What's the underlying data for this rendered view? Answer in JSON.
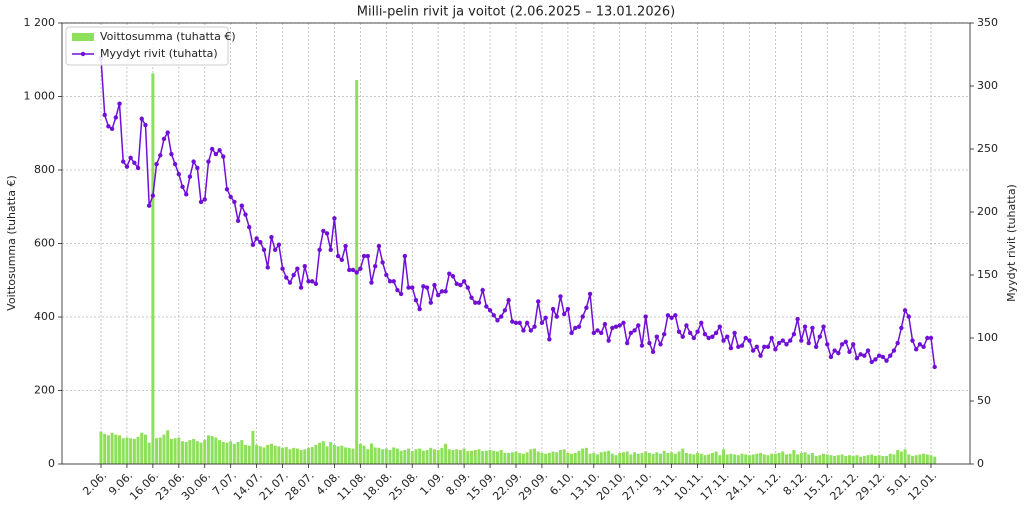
{
  "chart_data": {
    "type": "bar",
    "title": "Milli-pelin rivit ja voitot (2.06.2025 – 13.01.2026)",
    "ylabel": "Voittosumma (tuhatta €)",
    "y2label": "Myydyt rivit (tuhatta)",
    "grid": true,
    "legend": "upper left",
    "categories": [
      "2.06.",
      null,
      null,
      null,
      null,
      null,
      null,
      "9.06.",
      null,
      null,
      null,
      null,
      null,
      null,
      "16.06.",
      null,
      null,
      null,
      null,
      null,
      null,
      "23.06.",
      null,
      null,
      null,
      null,
      null,
      null,
      "30.06.",
      null,
      null,
      null,
      null,
      null,
      null,
      "7.07.",
      null,
      null,
      null,
      null,
      null,
      null,
      "14.07.",
      null,
      null,
      null,
      null,
      null,
      null,
      "21.07.",
      null,
      null,
      null,
      null,
      null,
      null,
      "28.07.",
      null,
      null,
      null,
      null,
      null,
      null,
      "4.08.",
      null,
      null,
      null,
      null,
      null,
      null,
      "11.08.",
      null,
      null,
      null,
      null,
      null,
      null,
      "18.08.",
      null,
      null,
      null,
      null,
      null,
      null,
      "25.08.",
      null,
      null,
      null,
      null,
      null,
      null,
      "1.09.",
      null,
      null,
      null,
      null,
      null,
      null,
      "8.09.",
      null,
      null,
      null,
      null,
      null,
      null,
      "15.09.",
      null,
      null,
      null,
      null,
      null,
      null,
      "22.09.",
      null,
      null,
      null,
      null,
      null,
      null,
      "29.09.",
      null,
      null,
      null,
      null,
      null,
      null,
      "6.10.",
      null,
      null,
      null,
      null,
      null,
      null,
      "13.10.",
      null,
      null,
      null,
      null,
      null,
      null,
      "20.10.",
      null,
      null,
      null,
      null,
      null,
      null,
      "27.10.",
      null,
      null,
      null,
      null,
      null,
      null,
      "3.11.",
      null,
      null,
      null,
      null,
      null,
      null,
      "10.11.",
      null,
      null,
      null,
      null,
      null,
      null,
      "17.11.",
      null,
      null,
      null,
      null,
      null,
      null,
      "24.11.",
      null,
      null,
      null,
      null,
      null,
      null,
      "1.12.",
      null,
      null,
      null,
      null,
      null,
      null,
      "8.12.",
      null,
      null,
      null,
      null,
      null,
      null,
      "15.12.",
      null,
      null,
      null,
      null,
      null,
      null,
      "22.12.",
      null,
      null,
      null,
      null,
      null,
      null,
      "29.12.",
      null,
      null,
      null,
      null,
      null,
      null,
      "5.01.",
      null,
      null,
      null,
      null,
      null,
      null,
      "12.01.",
      null
    ],
    "series": [
      {
        "name": "Voittosumma (tuhatta €)",
        "type": "bar",
        "color": "#8ee05a",
        "values": [
          88,
          82,
          78,
          85,
          80,
          78,
          70,
          72,
          70,
          68,
          74,
          85,
          80,
          58,
          1063,
          70,
          72,
          80,
          92,
          68,
          70,
          72,
          62,
          60,
          65,
          68,
          62,
          58,
          66,
          78,
          76,
          72,
          65,
          60,
          58,
          62,
          55,
          60,
          65,
          52,
          50,
          90,
          52,
          48,
          45,
          52,
          55,
          50,
          48,
          44,
          46,
          40,
          44,
          42,
          38,
          40,
          44,
          46,
          52,
          58,
          62,
          48,
          60,
          52,
          48,
          50,
          45,
          44,
          42,
          1045,
          55,
          50,
          40,
          56,
          45,
          44,
          40,
          42,
          38,
          45,
          42,
          36,
          38,
          42,
          35,
          40,
          42,
          36,
          38,
          44,
          40,
          38,
          44,
          55,
          40,
          38,
          40,
          38,
          42,
          35,
          36,
          38,
          40,
          35,
          36,
          38,
          36,
          34,
          38,
          30,
          30,
          32,
          34,
          30,
          28,
          32,
          40,
          42,
          34,
          30,
          28,
          30,
          34,
          32,
          38,
          40,
          30,
          28,
          30,
          36,
          42,
          44,
          28,
          30,
          26,
          32,
          34,
          36,
          28,
          24,
          30,
          32,
          34,
          26,
          32,
          28,
          30,
          34,
          30,
          28,
          32,
          28,
          36,
          30,
          32,
          28,
          34,
          42,
          30,
          28,
          26,
          30,
          28,
          24,
          26,
          30,
          34,
          24,
          40,
          26,
          28,
          26,
          24,
          28,
          26,
          24,
          26,
          28,
          30,
          26,
          24,
          28,
          28,
          30,
          34,
          26,
          28,
          38,
          26,
          30,
          32,
          26,
          30,
          22,
          24,
          28,
          26,
          24,
          22,
          24,
          26,
          22,
          24,
          22,
          24,
          20,
          22,
          24,
          26,
          22,
          24,
          22,
          22,
          28,
          26,
          38,
          34,
          40,
          26,
          22,
          24,
          26,
          28,
          26,
          24,
          20
        ]
      },
      {
        "name": "Myydyt rivit (tuhatta)",
        "type": "line",
        "axis": "y2",
        "color": "#7010d6",
        "values": [
          322,
          277,
          268,
          266,
          275,
          286,
          240,
          236,
          243,
          239,
          235,
          274,
          269,
          205,
          213,
          238,
          245,
          258,
          263,
          246,
          238,
          230,
          220,
          214,
          228,
          240,
          235,
          208,
          210,
          240,
          250,
          246,
          249,
          244,
          218,
          212,
          208,
          193,
          205,
          198,
          188,
          174,
          179,
          176,
          170,
          156,
          180,
          170,
          174,
          155,
          148,
          144,
          150,
          155,
          140,
          157,
          145,
          145,
          143,
          170,
          185,
          183,
          170,
          195,
          165,
          162,
          173,
          154,
          154,
          152,
          155,
          165,
          165,
          144,
          157,
          173,
          160,
          150,
          145,
          145,
          138,
          135,
          165,
          140,
          140,
          130,
          123,
          141,
          140,
          128,
          142,
          134,
          137,
          137,
          151,
          149,
          143,
          142,
          145,
          140,
          132,
          128,
          128,
          138,
          125,
          122,
          118,
          114,
          117,
          122,
          130,
          113,
          112,
          112,
          106,
          112,
          106,
          109,
          129,
          112,
          116,
          99,
          123,
          117,
          133,
          119,
          123,
          104,
          108,
          109,
          117,
          124,
          135,
          104,
          106,
          104,
          111,
          98,
          108,
          109,
          110,
          112,
          96,
          104,
          106,
          110,
          94,
          117,
          96,
          89,
          101,
          95,
          103,
          118,
          116,
          118,
          105,
          101,
          110,
          104,
          100,
          105,
          112,
          103,
          100,
          101,
          104,
          109,
          98,
          101,
          92,
          104,
          93,
          94,
          100,
          98,
          90,
          93,
          86,
          93,
          93,
          100,
          91,
          96,
          98,
          95,
          98,
          103,
          115,
          98,
          109,
          96,
          108,
          93,
          101,
          109,
          95,
          85,
          90,
          88,
          95,
          97,
          89,
          95,
          84,
          87,
          86,
          90,
          81,
          83,
          86,
          85,
          82,
          86,
          90,
          96,
          108,
          122,
          117,
          98,
          91,
          95,
          93,
          100,
          100,
          77
        ]
      }
    ],
    "ylim": [
      0,
      1200
    ],
    "yticks": [
      0,
      200,
      400,
      600,
      800,
      {
        "value": 1000,
        "label": "1 000"
      },
      {
        "value": 1200,
        "label": "1 200"
      }
    ],
    "y2lim": [
      0,
      350
    ],
    "y2ticks": [
      0,
      50,
      100,
      150,
      200,
      250,
      300,
      350
    ]
  }
}
